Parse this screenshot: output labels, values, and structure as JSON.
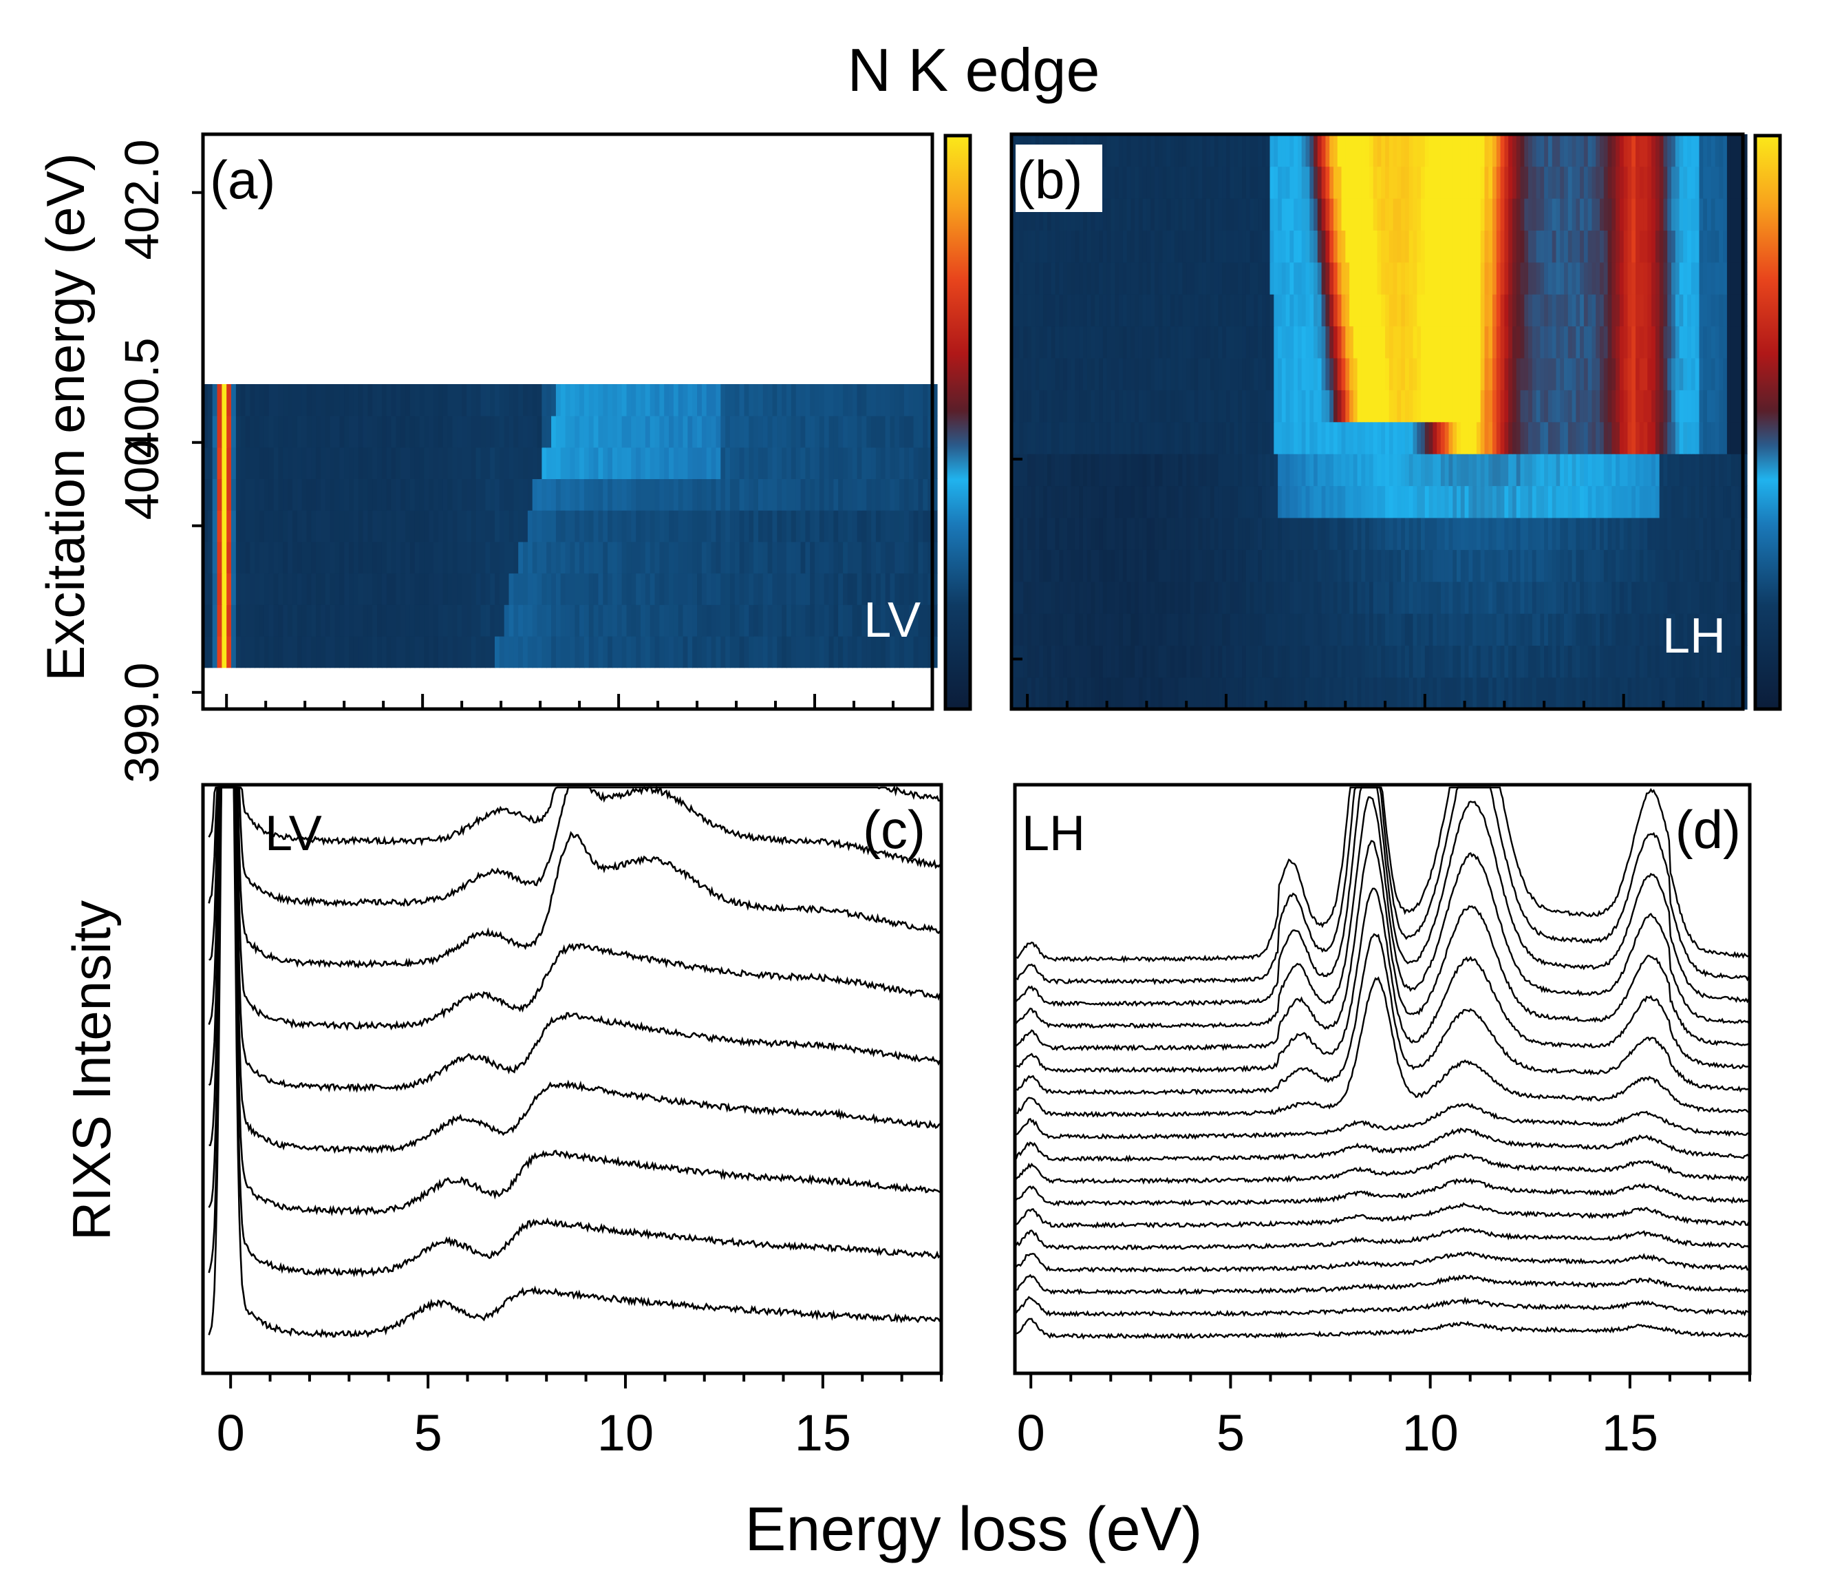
{
  "figure": {
    "title": "N K edge",
    "xlabel": "Energy loss (eV)",
    "ylabel_top": "Excitation energy (eV)",
    "ylabel_bottom": "RIXS Intensity"
  },
  "colormap": [
    "#0b1d3a",
    "#0e3a63",
    "#1a78b8",
    "#20b3ee",
    "#2a5a8a",
    "#5a1f2a",
    "#b01818",
    "#e8451c",
    "#f8a21c",
    "#fbe81a"
  ],
  "chart_data": [
    {
      "panel": "a",
      "type": "heatmap",
      "label": "(a)",
      "polarization": "LV",
      "x_range": [
        -0.6,
        18
      ],
      "y_range": [
        398.9,
        402.35
      ],
      "data_y_range": [
        399.15,
        400.85
      ],
      "n_rows": 9,
      "y_ticks": [
        399.0,
        400.5,
        402.0
      ],
      "y_tick_labels": [
        "399.0",
        "400.5",
        "402.0"
      ],
      "extra_y_tick": 400.0,
      "extra_y_tick_label": "400",
      "x_major_ticks": [
        0,
        5,
        10,
        15
      ],
      "features": [
        {
          "name": "elastic",
          "x": -0.1,
          "width": 0.18,
          "amp": 9.0
        },
        {
          "name": "band-8-15",
          "x": 9.0,
          "width": 3.0,
          "amp": 0.6
        },
        {
          "name": "band-7",
          "x": 7.0,
          "width": 0.8,
          "amp": 0.3
        }
      ]
    },
    {
      "panel": "b",
      "type": "heatmap",
      "label": "(b)",
      "polarization": "LH",
      "x_range": [
        -0.4,
        18
      ],
      "y_range": [
        398.9,
        402.35
      ],
      "data_y_range": [
        398.9,
        402.35
      ],
      "n_rows": 18,
      "x_major_ticks": [
        0,
        5,
        10,
        15
      ],
      "features": [
        {
          "name": "peak-8.5",
          "x_start": 8.4,
          "x_end": 7.8,
          "y_on": 400.7,
          "amp": 1.0
        },
        {
          "name": "peak-11",
          "x": 11.0,
          "y_on": 400.55,
          "amp": 1.0
        },
        {
          "name": "peak-15.5",
          "x": 15.5,
          "y_on": 400.4,
          "amp": 0.7
        }
      ]
    },
    {
      "panel": "c",
      "type": "line",
      "label": "(c)",
      "polarization": "LV",
      "x_range": [
        -0.7,
        18
      ],
      "x_ticks": [
        0,
        5,
        10,
        15
      ],
      "x_tick_labels": [
        "0",
        "5",
        "10",
        "15"
      ],
      "n_spectra": 9,
      "offset": 0.16,
      "series_description": "Nine stacked RIXS spectra: strong elastic peak near 0 eV, shoulder at ~7 eV and broad band 8-13 eV; lowest spectrum at 399.0 eV, top at 400.5 eV."
    },
    {
      "panel": "d",
      "type": "line",
      "label": "(d)",
      "polarization": "LH",
      "x_range": [
        -0.4,
        18
      ],
      "x_ticks": [
        0,
        5,
        10,
        15
      ],
      "x_tick_labels": [
        "0",
        "5",
        "10",
        "15"
      ],
      "n_spectra": 18,
      "offset": 0.07,
      "series_description": "Eighteen stacked RIXS spectra with peaks at ~7, ~8.5, ~11 and ~15.5 eV that grow strongly for upper (higher excitation energy) spectra."
    }
  ]
}
